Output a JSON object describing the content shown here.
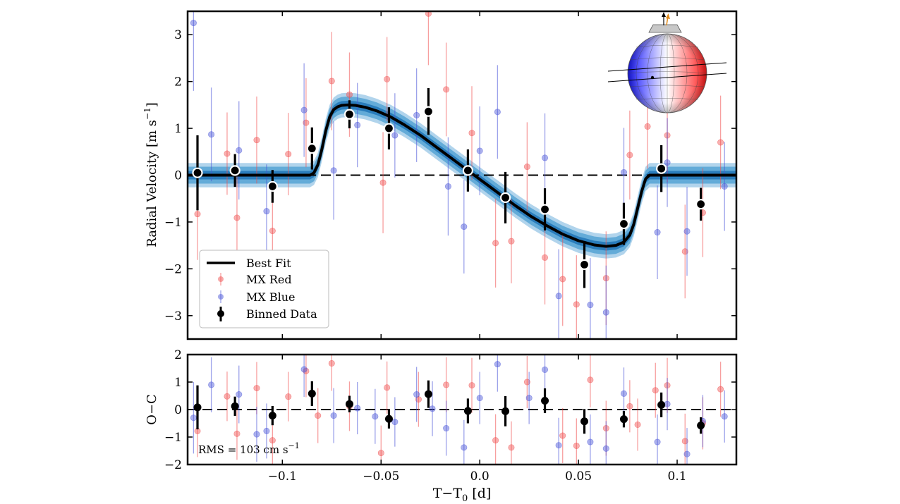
{
  "chart_data": {
    "type": "scatter",
    "xlabel": "T−T",
    "xlabel_sub": "0",
    "xlabel_unit": " [d]",
    "xticks": [
      -0.1,
      -0.05,
      0.0,
      0.05,
      0.1
    ],
    "xtick_labels": [
      "−0.1",
      "−0.05",
      "0.0",
      "0.05",
      "0.1"
    ],
    "xlim": [
      -0.148,
      0.13
    ],
    "panels": {
      "main": {
        "ylabel": "Radial Velocity [m s",
        "ylabel_sup": "−1",
        "ylabel_end": "]",
        "ylim": [
          -3.5,
          3.5
        ],
        "yticks": [
          -3,
          -2,
          -1,
          0,
          1,
          2,
          3
        ],
        "ytick_labels": [
          "−3",
          "−2",
          "−1",
          "0",
          "1",
          "2",
          "3"
        ],
        "model": {
          "name": "Best Fit",
          "x": [
            -0.148,
            -0.09,
            -0.086,
            -0.084,
            -0.082,
            -0.08,
            -0.078,
            -0.076,
            -0.074,
            -0.072,
            -0.07,
            -0.067,
            -0.063,
            -0.058,
            -0.052,
            -0.045,
            -0.038,
            -0.03,
            -0.022,
            -0.014,
            -0.006,
            0.002,
            0.01,
            0.018,
            0.026,
            0.034,
            0.042,
            0.05,
            0.058,
            0.064,
            0.069,
            0.073,
            0.076,
            0.078,
            0.08,
            0.082,
            0.084,
            0.086,
            0.09,
            0.13
          ],
          "y": [
            0,
            0,
            0,
            0.05,
            0.22,
            0.55,
            0.95,
            1.25,
            1.4,
            1.46,
            1.49,
            1.5,
            1.49,
            1.45,
            1.37,
            1.24,
            1.07,
            0.85,
            0.6,
            0.35,
            0.1,
            -0.15,
            -0.4,
            -0.65,
            -0.88,
            -1.08,
            -1.26,
            -1.4,
            -1.49,
            -1.52,
            -1.5,
            -1.43,
            -1.28,
            -1.05,
            -0.7,
            -0.35,
            -0.08,
            0,
            0,
            0
          ],
          "bands_halfwidth": [
            0.26,
            0.18,
            0.09
          ]
        },
        "mx_red": [
          {
            "x": -0.143,
            "y": -0.83,
            "err": 0.98
          },
          {
            "x": -0.128,
            "y": 0.46,
            "err": 0.88
          },
          {
            "x": -0.123,
            "y": -0.91,
            "err": 0.95
          },
          {
            "x": -0.113,
            "y": 0.75,
            "err": 0.93
          },
          {
            "x": -0.105,
            "y": -1.19,
            "err": 1.0
          },
          {
            "x": -0.097,
            "y": 0.45,
            "err": 0.88
          },
          {
            "x": -0.088,
            "y": 1.12,
            "err": 0.95
          },
          {
            "x": -0.075,
            "y": 2.01,
            "err": 1.05
          },
          {
            "x": -0.066,
            "y": 1.72,
            "err": 0.9
          },
          {
            "x": -0.049,
            "y": -0.16,
            "err": 1.08
          },
          {
            "x": -0.047,
            "y": 2.05,
            "err": 0.9
          },
          {
            "x": -0.026,
            "y": 3.45,
            "err": 1.1
          },
          {
            "x": -0.017,
            "y": 1.83,
            "err": 1.0
          },
          {
            "x": -0.004,
            "y": 0.9,
            "err": 1.0
          },
          {
            "x": 0.008,
            "y": -1.45,
            "err": 0.95
          },
          {
            "x": 0.016,
            "y": -1.41,
            "err": 0.9
          },
          {
            "x": 0.024,
            "y": 0.18,
            "err": 0.95
          },
          {
            "x": 0.033,
            "y": -1.76,
            "err": 1.0
          },
          {
            "x": 0.042,
            "y": -2.22,
            "err": 1.0
          },
          {
            "x": 0.049,
            "y": -2.76,
            "err": 1.05
          },
          {
            "x": 0.064,
            "y": -2.2,
            "err": 1.0
          },
          {
            "x": 0.076,
            "y": 0.43,
            "err": 0.95
          },
          {
            "x": 0.085,
            "y": 1.04,
            "err": 0.9
          },
          {
            "x": 0.095,
            "y": 0.85,
            "err": 1.0
          },
          {
            "x": 0.104,
            "y": -1.63,
            "err": 1.0
          },
          {
            "x": 0.113,
            "y": -0.8,
            "err": 0.95
          },
          {
            "x": 0.122,
            "y": 0.7,
            "err": 1.0
          }
        ],
        "mx_blue": [
          {
            "x": -0.145,
            "y": 3.25,
            "err": 1.45
          },
          {
            "x": -0.136,
            "y": 0.87,
            "err": 1.0
          },
          {
            "x": -0.122,
            "y": 0.53,
            "err": 1.05
          },
          {
            "x": -0.108,
            "y": -0.77,
            "err": 1.0
          },
          {
            "x": -0.089,
            "y": 1.39,
            "err": 1.0
          },
          {
            "x": -0.074,
            "y": 0.1,
            "err": 1.05
          },
          {
            "x": -0.062,
            "y": 1.07,
            "err": 0.9
          },
          {
            "x": -0.043,
            "y": 0.85,
            "err": 0.9
          },
          {
            "x": -0.032,
            "y": 1.28,
            "err": 1.0
          },
          {
            "x": -0.016,
            "y": -0.24,
            "err": 1.05
          },
          {
            "x": -0.008,
            "y": -1.1,
            "err": 1.0
          },
          {
            "x": 0.0,
            "y": 0.52,
            "err": 0.95
          },
          {
            "x": 0.009,
            "y": 1.35,
            "err": 1.0
          },
          {
            "x": 0.033,
            "y": 0.37,
            "err": 0.95
          },
          {
            "x": 0.04,
            "y": -2.58,
            "err": 1.0
          },
          {
            "x": 0.056,
            "y": -2.77,
            "err": 1.0
          },
          {
            "x": 0.064,
            "y": -2.93,
            "err": 1.0
          },
          {
            "x": 0.073,
            "y": 0.06,
            "err": 0.95
          },
          {
            "x": 0.09,
            "y": -1.22,
            "err": 1.0
          },
          {
            "x": 0.095,
            "y": 0.27,
            "err": 0.95
          },
          {
            "x": 0.105,
            "y": -1.2,
            "err": 0.95
          },
          {
            "x": 0.124,
            "y": -0.24,
            "err": 0.95
          }
        ],
        "binned": [
          {
            "x": -0.143,
            "y": 0.05,
            "err": 0.8
          },
          {
            "x": -0.124,
            "y": 0.1,
            "err": 0.35
          },
          {
            "x": -0.105,
            "y": -0.24,
            "err": 0.35
          },
          {
            "x": -0.085,
            "y": 0.57,
            "err": 0.45
          },
          {
            "x": -0.066,
            "y": 1.3,
            "err": 0.3
          },
          {
            "x": -0.046,
            "y": 1.0,
            "err": 0.45
          },
          {
            "x": -0.026,
            "y": 1.36,
            "err": 0.5
          },
          {
            "x": -0.006,
            "y": 0.1,
            "err": 0.45
          },
          {
            "x": 0.013,
            "y": -0.48,
            "err": 0.55
          },
          {
            "x": 0.033,
            "y": -0.73,
            "err": 0.45
          },
          {
            "x": 0.053,
            "y": -1.91,
            "err": 0.5
          },
          {
            "x": 0.073,
            "y": -1.04,
            "err": 0.45
          },
          {
            "x": 0.092,
            "y": 0.14,
            "err": 0.5
          },
          {
            "x": 0.112,
            "y": -0.62,
            "err": 0.35
          }
        ]
      },
      "residual": {
        "ylabel": "O−C",
        "ylim": [
          -2,
          2
        ],
        "yticks": [
          -2,
          -1,
          0,
          1,
          2
        ],
        "ytick_labels": [
          "−2",
          "−1",
          "0",
          "1",
          "2"
        ],
        "rms_text": "RMS =  103 cm s",
        "rms_sup": "−1",
        "mx_red": [
          {
            "x": -0.143,
            "y": -0.78,
            "err": 0.95
          },
          {
            "x": -0.128,
            "y": 0.48,
            "err": 0.9
          },
          {
            "x": -0.123,
            "y": -0.88,
            "err": 0.95
          },
          {
            "x": -0.113,
            "y": 0.78,
            "err": 0.95
          },
          {
            "x": -0.105,
            "y": -1.12,
            "err": 1.0
          },
          {
            "x": -0.097,
            "y": 0.47,
            "err": 0.9
          },
          {
            "x": -0.088,
            "y": 1.4,
            "err": 0.95
          },
          {
            "x": -0.082,
            "y": -0.22,
            "err": 1.0
          },
          {
            "x": -0.075,
            "y": 1.68,
            "err": 1.0
          },
          {
            "x": -0.066,
            "y": 0.12,
            "err": 0.9
          },
          {
            "x": -0.05,
            "y": -1.58,
            "err": 1.0
          },
          {
            "x": -0.047,
            "y": 0.8,
            "err": 0.95
          },
          {
            "x": -0.031,
            "y": 0.37,
            "err": 1.0
          },
          {
            "x": -0.017,
            "y": 0.9,
            "err": 1.0
          },
          {
            "x": -0.004,
            "y": 0.88,
            "err": 1.0
          },
          {
            "x": 0.008,
            "y": -1.12,
            "err": 0.95
          },
          {
            "x": 0.016,
            "y": -1.38,
            "err": 0.95
          },
          {
            "x": 0.024,
            "y": 1.0,
            "err": 0.95
          },
          {
            "x": 0.042,
            "y": -0.95,
            "err": 1.0
          },
          {
            "x": 0.049,
            "y": -1.32,
            "err": 1.0
          },
          {
            "x": 0.056,
            "y": 1.08,
            "err": 1.0
          },
          {
            "x": 0.064,
            "y": -0.68,
            "err": 1.0
          },
          {
            "x": 0.076,
            "y": 0.12,
            "err": 0.95
          },
          {
            "x": 0.08,
            "y": -0.55,
            "err": 0.95
          },
          {
            "x": 0.089,
            "y": 0.7,
            "err": 1.0
          },
          {
            "x": 0.095,
            "y": 0.88,
            "err": 1.0
          },
          {
            "x": 0.104,
            "y": -1.15,
            "err": 1.0
          },
          {
            "x": 0.113,
            "y": -0.5,
            "err": 0.95
          },
          {
            "x": 0.122,
            "y": 0.74,
            "err": 1.0
          }
        ],
        "mx_blue": [
          {
            "x": -0.145,
            "y": -0.3,
            "err": 1.3
          },
          {
            "x": -0.136,
            "y": 0.9,
            "err": 1.0
          },
          {
            "x": -0.122,
            "y": 0.55,
            "err": 1.05
          },
          {
            "x": -0.113,
            "y": -0.9,
            "err": 1.0
          },
          {
            "x": -0.108,
            "y": -0.78,
            "err": 1.0
          },
          {
            "x": -0.089,
            "y": 1.46,
            "err": 1.0
          },
          {
            "x": -0.074,
            "y": -0.22,
            "err": 1.0
          },
          {
            "x": -0.062,
            "y": 0.05,
            "err": 0.95
          },
          {
            "x": -0.053,
            "y": -0.25,
            "err": 1.0
          },
          {
            "x": -0.043,
            "y": -0.45,
            "err": 0.9
          },
          {
            "x": -0.032,
            "y": 0.55,
            "err": 1.0
          },
          {
            "x": -0.024,
            "y": 0.03,
            "err": 1.0
          },
          {
            "x": -0.017,
            "y": -0.68,
            "err": 1.0
          },
          {
            "x": -0.008,
            "y": -1.38,
            "err": 1.0
          },
          {
            "x": 0.0,
            "y": 0.42,
            "err": 0.95
          },
          {
            "x": 0.009,
            "y": 1.65,
            "err": 1.0
          },
          {
            "x": 0.025,
            "y": 0.42,
            "err": 0.95
          },
          {
            "x": 0.033,
            "y": 1.45,
            "err": 0.95
          },
          {
            "x": 0.04,
            "y": -1.3,
            "err": 1.0
          },
          {
            "x": 0.056,
            "y": -1.18,
            "err": 1.0
          },
          {
            "x": 0.064,
            "y": -1.42,
            "err": 1.0
          },
          {
            "x": 0.073,
            "y": 0.58,
            "err": 0.95
          },
          {
            "x": 0.09,
            "y": -1.18,
            "err": 1.0
          },
          {
            "x": 0.095,
            "y": 0.2,
            "err": 0.95
          },
          {
            "x": 0.105,
            "y": -1.62,
            "err": 0.95
          },
          {
            "x": 0.113,
            "y": -0.42,
            "err": 0.95
          },
          {
            "x": 0.124,
            "y": -0.25,
            "err": 0.95
          }
        ],
        "binned": [
          {
            "x": -0.143,
            "y": 0.08,
            "err": 0.8
          },
          {
            "x": -0.124,
            "y": 0.12,
            "err": 0.35
          },
          {
            "x": -0.105,
            "y": -0.22,
            "err": 0.35
          },
          {
            "x": -0.085,
            "y": 0.58,
            "err": 0.45
          },
          {
            "x": -0.066,
            "y": 0.2,
            "err": 0.3
          },
          {
            "x": -0.046,
            "y": -0.34,
            "err": 0.35
          },
          {
            "x": -0.026,
            "y": 0.56,
            "err": 0.5
          },
          {
            "x": -0.006,
            "y": -0.05,
            "err": 0.45
          },
          {
            "x": 0.013,
            "y": -0.06,
            "err": 0.55
          },
          {
            "x": 0.033,
            "y": 0.32,
            "err": 0.45
          },
          {
            "x": 0.053,
            "y": -0.43,
            "err": 0.45
          },
          {
            "x": 0.073,
            "y": -0.35,
            "err": 0.3
          },
          {
            "x": 0.092,
            "y": 0.17,
            "err": 0.45
          },
          {
            "x": 0.112,
            "y": -0.58,
            "err": 0.3
          }
        ]
      }
    },
    "legend": {
      "placement": "lower-left",
      "entries": [
        {
          "label": "Best Fit",
          "kind": "line"
        },
        {
          "label": "MX Red",
          "kind": "red"
        },
        {
          "label": "MX Blue",
          "kind": "blue"
        },
        {
          "label": "Binned Data",
          "kind": "binned"
        }
      ]
    },
    "inset": {
      "placement": "top-right",
      "icon": "stellar-rotation-sphere-icon"
    },
    "colors": {
      "model": "#000000",
      "band_outer": "#a9cfea",
      "band_mid": "#5ba6d6",
      "band_inner": "#2378b9",
      "red": "#f05050",
      "blue": "#4a55d8",
      "binned": "#000000",
      "zero_line": "#000000"
    }
  }
}
